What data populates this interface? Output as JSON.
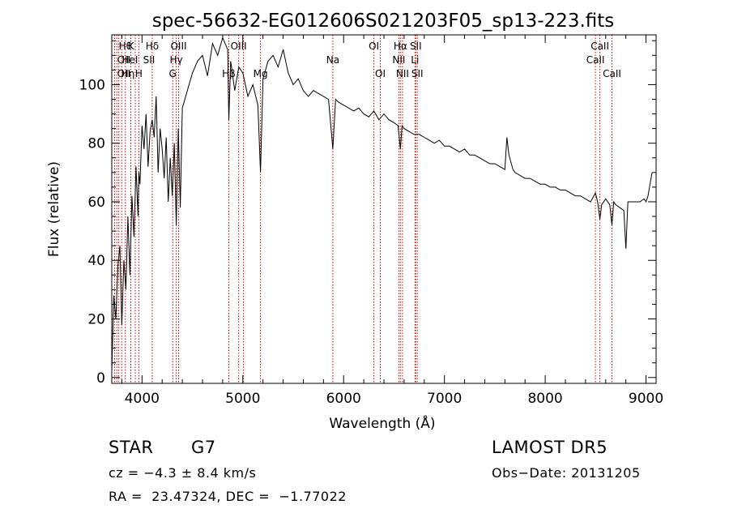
{
  "chart_data": {
    "type": "line",
    "title": "spec-56632-EG012606S021203F05_sp13-223.fits",
    "xlabel": "Wavelength (Å)",
    "ylabel": "Flux (relative)",
    "xlim": [
      3700,
      9100
    ],
    "ylim": [
      -2,
      117
    ],
    "x_ticks": [
      4000,
      5000,
      6000,
      7000,
      8000,
      9000
    ],
    "y_ticks": [
      0,
      20,
      40,
      60,
      80,
      100
    ],
    "grid": false,
    "line_color": "#000000",
    "marker_color": "#cc0000",
    "series": [
      {
        "x": [
          3700,
          3720,
          3740,
          3760,
          3780,
          3800,
          3820,
          3840,
          3860,
          3880,
          3900,
          3920,
          3940,
          3960,
          3968,
          3980,
          4000,
          4020,
          4040,
          4060,
          4080,
          4101,
          4120,
          4140,
          4160,
          4180,
          4200,
          4220,
          4240,
          4260,
          4280,
          4300,
          4320,
          4340,
          4360,
          4380,
          4400,
          4450,
          4500,
          4550,
          4600,
          4650,
          4700,
          4750,
          4800,
          4850,
          4861,
          4880,
          4920,
          4960,
          5000,
          5050,
          5100,
          5150,
          5175,
          5200,
          5250,
          5300,
          5350,
          5400,
          5450,
          5500,
          5550,
          5600,
          5650,
          5700,
          5750,
          5800,
          5850,
          5893,
          5920,
          5950,
          6000,
          6050,
          6100,
          6150,
          6200,
          6250,
          6300,
          6350,
          6400,
          6450,
          6500,
          6540,
          6563,
          6580,
          6600,
          6650,
          6700,
          6750,
          6800,
          6850,
          6900,
          6950,
          7000,
          7050,
          7100,
          7150,
          7200,
          7250,
          7300,
          7350,
          7400,
          7450,
          7500,
          7550,
          7600,
          7620,
          7640,
          7680,
          7700,
          7750,
          7800,
          7850,
          7900,
          7950,
          8000,
          8050,
          8100,
          8150,
          8200,
          8250,
          8300,
          8350,
          8400,
          8450,
          8498,
          8520,
          8542,
          8560,
          8600,
          8640,
          8662,
          8680,
          8700,
          8740,
          8780,
          8800,
          8820,
          8860,
          8900,
          8940,
          8980,
          9000,
          9020,
          9040,
          9060
        ],
        "y": [
          2,
          28,
          20,
          38,
          45,
          18,
          40,
          30,
          55,
          35,
          62,
          48,
          72,
          55,
          70,
          66,
          86,
          78,
          90,
          72,
          84,
          88,
          82,
          96,
          70,
          85,
          78,
          68,
          82,
          60,
          75,
          62,
          80,
          52,
          85,
          58,
          92,
          98,
          104,
          108,
          110,
          103,
          114,
          110,
          116,
          112,
          88,
          108,
          98,
          106,
          104,
          96,
          100,
          93,
          70,
          102,
          108,
          110,
          106,
          112,
          104,
          100,
          102,
          98,
          96,
          98,
          97,
          96,
          95,
          78,
          95,
          94,
          93,
          92,
          91,
          92,
          90,
          89,
          91,
          88,
          90,
          88,
          87,
          86,
          78,
          86,
          85,
          84,
          83,
          83,
          82,
          81,
          80,
          81,
          79,
          79,
          78,
          77,
          78,
          76,
          76,
          75,
          74,
          73,
          73,
          72,
          71,
          82,
          76,
          71,
          70,
          69,
          68,
          68,
          67,
          66,
          66,
          65,
          65,
          64,
          64,
          63,
          62,
          62,
          61,
          60,
          63,
          60,
          54,
          59,
          61,
          59,
          52,
          60,
          59,
          58,
          57,
          44,
          60,
          60,
          60,
          60,
          61,
          60,
          62,
          66,
          70
        ]
      }
    ],
    "line_labels": [
      {
        "wl": 3835,
        "row": 0,
        "text": "Hθ"
      },
      {
        "wl": 3820,
        "row": 1,
        "text": "OII"
      },
      {
        "wl": 3820,
        "row": 2,
        "text": "OII"
      },
      {
        "wl": 3889,
        "row": 0,
        "text": "K"
      },
      {
        "wl": 3880,
        "row": 1,
        "text": "HeI"
      },
      {
        "wl": 3860,
        "row": 2,
        "text": "Hη"
      },
      {
        "wl": 4101,
        "row": 0,
        "text": "Hδ"
      },
      {
        "wl": 4070,
        "row": 1,
        "text": "SII"
      },
      {
        "wl": 3968,
        "row": 2,
        "text": "H"
      },
      {
        "wl": 4363,
        "row": 0,
        "text": "OIII"
      },
      {
        "wl": 4340,
        "row": 1,
        "text": "Hγ"
      },
      {
        "wl": 4304,
        "row": 2,
        "text": "G"
      },
      {
        "wl": 4959,
        "row": 0,
        "text": "OIII"
      },
      {
        "wl": 4861,
        "row": 2,
        "text": "Hβ"
      },
      {
        "wl": 5175,
        "row": 2,
        "text": "Mg"
      },
      {
        "wl": 5893,
        "row": 1,
        "text": "Na"
      },
      {
        "wl": 6300,
        "row": 0,
        "text": "OI"
      },
      {
        "wl": 6364,
        "row": 2,
        "text": "OI"
      },
      {
        "wl": 6563,
        "row": 0,
        "text": "Hα"
      },
      {
        "wl": 6548,
        "row": 1,
        "text": "NII"
      },
      {
        "wl": 6584,
        "row": 2,
        "text": "NII"
      },
      {
        "wl": 6716,
        "row": 0,
        "text": "SII"
      },
      {
        "wl": 6708,
        "row": 1,
        "text": "Li"
      },
      {
        "wl": 6731,
        "row": 2,
        "text": "SII"
      },
      {
        "wl": 8542,
        "row": 0,
        "text": "CaII"
      },
      {
        "wl": 8498,
        "row": 1,
        "text": "CaII"
      },
      {
        "wl": 8662,
        "row": 2,
        "text": "CaII"
      }
    ],
    "line_markers": [
      3727,
      3750,
      3770,
      3798,
      3835,
      3889,
      3933,
      3968,
      4101,
      4304,
      4340,
      4363,
      4861,
      4959,
      5007,
      5175,
      5893,
      6300,
      6364,
      6548,
      6563,
      6584,
      6708,
      6716,
      6731,
      8498,
      8542,
      8662
    ]
  },
  "info": {
    "object_type": "STAR",
    "subclass": "G7",
    "cz": "cz = −4.3 ± 8.4 km/s",
    "coords": "RA =  23.47324, DEC =  −1.77022",
    "survey": "LAMOST DR5",
    "obs_date": "Obs−Date: 20131205"
  }
}
